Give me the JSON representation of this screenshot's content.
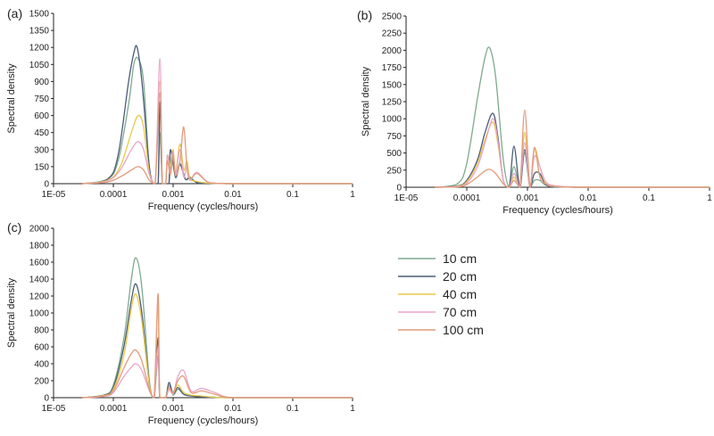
{
  "legend": {
    "placement": "right",
    "entries": [
      "10 cm",
      "20 cm",
      "40 cm",
      "70 cm",
      "100 cm"
    ],
    "colors": [
      "#7fa98f",
      "#4b5d79",
      "#e8c94a",
      "#e8a6c8",
      "#e39a7a"
    ]
  },
  "chart_data": [
    {
      "type": "line",
      "panel_label": "(a)",
      "xlabel": "Frequency (cycles/hours)",
      "ylabel": "Spectral density",
      "x_scale": "log",
      "xlim": [
        1e-05,
        1
      ],
      "x_ticks": [
        "1E-05",
        "0.0001",
        "0.001",
        "0.01",
        "0.1",
        "1"
      ],
      "ylim": [
        0,
        1500
      ],
      "y_ticks": [
        "0",
        "150",
        "300",
        "450",
        "600",
        "750",
        "900",
        "1050",
        "1200",
        "1350",
        "1500"
      ],
      "grid": false,
      "series": [
        {
          "name": "10 cm",
          "x": [
            3e-05,
            8e-05,
            0.00012,
            0.00018,
            0.00022,
            0.00026,
            0.00032,
            0.0004,
            0.00048,
            0.00056,
            0.0006,
            0.00066,
            0.00075,
            0.00085,
            0.00095,
            0.0011,
            0.0013,
            0.0016,
            0.0019,
            0.0025,
            0.004,
            0.01,
            0.1,
            1
          ],
          "y": [
            0,
            40,
            200,
            700,
            1050,
            1100,
            900,
            120,
            0,
            0,
            450,
            0,
            0,
            0,
            250,
            50,
            180,
            40,
            60,
            10,
            5,
            0,
            0,
            0
          ]
        },
        {
          "name": "20 cm",
          "x": [
            3e-05,
            8e-05,
            0.00012,
            0.00018,
            0.00022,
            0.00025,
            0.0003,
            0.0004,
            0.00048,
            0.00056,
            0.0006,
            0.00066,
            0.00075,
            0.00085,
            0.0009,
            0.0011,
            0.0013,
            0.0016,
            0.0019,
            0.0025,
            0.004,
            0.01,
            0.1,
            1
          ],
          "y": [
            0,
            40,
            250,
            900,
            1150,
            1200,
            900,
            150,
            0,
            0,
            720,
            0,
            0,
            0,
            300,
            60,
            170,
            40,
            50,
            10,
            5,
            0,
            0,
            0
          ]
        },
        {
          "name": "40 cm",
          "x": [
            3e-05,
            8e-05,
            0.00013,
            0.0002,
            0.00026,
            0.00032,
            0.0004,
            0.0005,
            0.0006,
            0.00066,
            0.00075,
            0.0008,
            0.0009,
            0.001,
            0.0011,
            0.0013,
            0.0015,
            0.0017,
            0.0019,
            0.0025,
            0.004,
            0.01,
            0.1,
            1
          ],
          "y": [
            0,
            30,
            150,
            450,
            600,
            500,
            100,
            0,
            900,
            0,
            0,
            250,
            150,
            300,
            100,
            350,
            120,
            200,
            50,
            20,
            5,
            0,
            0,
            0
          ]
        },
        {
          "name": "70 cm",
          "x": [
            3e-05,
            8e-05,
            0.00013,
            0.0002,
            0.00026,
            0.00032,
            0.0004,
            0.0005,
            0.0006,
            0.00066,
            0.00075,
            0.0008,
            0.0009,
            0.001,
            0.0011,
            0.0013,
            0.0015,
            0.0017,
            0.0019,
            0.0025,
            0.004,
            0.01,
            0.1,
            1
          ],
          "y": [
            0,
            25,
            120,
            300,
            370,
            300,
            80,
            0,
            1100,
            0,
            0,
            250,
            100,
            280,
            80,
            300,
            60,
            150,
            30,
            100,
            10,
            0,
            0,
            0
          ]
        },
        {
          "name": "100 cm",
          "x": [
            3e-05,
            8e-05,
            0.00013,
            0.0002,
            0.00026,
            0.00032,
            0.0004,
            0.0005,
            0.0006,
            0.00066,
            0.00075,
            0.0008,
            0.0009,
            0.001,
            0.0011,
            0.0013,
            0.0015,
            0.0017,
            0.0019,
            0.0025,
            0.004,
            0.01,
            0.1,
            1
          ],
          "y": [
            0,
            15,
            60,
            120,
            150,
            120,
            30,
            0,
            800,
            0,
            0,
            200,
            80,
            250,
            70,
            200,
            500,
            150,
            40,
            90,
            10,
            0,
            0,
            0
          ]
        }
      ]
    },
    {
      "type": "line",
      "panel_label": "(b)",
      "xlabel": "Frequency (cycles/hours)",
      "ylabel": "Spectral density",
      "x_scale": "log",
      "xlim": [
        1e-05,
        1
      ],
      "x_ticks": [
        "1E-05",
        "0.0001",
        "0.001",
        "0.01",
        "0.1",
        "1"
      ],
      "ylim": [
        0,
        2500
      ],
      "y_ticks": [
        "0",
        "250",
        "500",
        "750",
        "1000",
        "1250",
        "1500",
        "1750",
        "2000",
        "2250",
        "2500"
      ],
      "grid": false,
      "series": [
        {
          "name": "10 cm",
          "x": [
            3e-05,
            7e-05,
            0.0001,
            0.00015,
            0.0002,
            0.00024,
            0.0003,
            0.0004,
            0.0005,
            0.0006,
            0.00075,
            0.0009,
            0.0011,
            0.0013,
            0.0016,
            0.002,
            0.003,
            0.01,
            0.1,
            1
          ],
          "y": [
            0,
            50,
            350,
            1300,
            1900,
            2030,
            1600,
            400,
            0,
            300,
            0,
            500,
            0,
            100,
            100,
            30,
            5,
            0,
            0,
            0
          ]
        },
        {
          "name": "20 cm",
          "x": [
            3e-05,
            7e-05,
            0.0001,
            0.00015,
            0.0002,
            0.00027,
            0.00033,
            0.0004,
            0.0005,
            0.0006,
            0.00075,
            0.0009,
            0.0011,
            0.0013,
            0.0016,
            0.002,
            0.003,
            0.01,
            0.1,
            1
          ],
          "y": [
            0,
            20,
            100,
            400,
            800,
            1080,
            700,
            100,
            0,
            600,
            0,
            550,
            0,
            200,
            200,
            40,
            5,
            0,
            0,
            0
          ]
        },
        {
          "name": "40 cm",
          "x": [
            3e-05,
            7e-05,
            0.0001,
            0.00015,
            0.0002,
            0.00027,
            0.00033,
            0.0004,
            0.0005,
            0.0006,
            0.00075,
            0.0009,
            0.0011,
            0.0013,
            0.0016,
            0.002,
            0.003,
            0.01,
            0.1,
            1
          ],
          "y": [
            0,
            15,
            80,
            350,
            700,
            950,
            600,
            100,
            0,
            150,
            0,
            800,
            0,
            550,
            300,
            60,
            10,
            0,
            0,
            0
          ]
        },
        {
          "name": "70 cm",
          "x": [
            3e-05,
            7e-05,
            0.0001,
            0.00015,
            0.0002,
            0.00027,
            0.00033,
            0.0004,
            0.0005,
            0.0006,
            0.00075,
            0.0009,
            0.0011,
            0.0013,
            0.0016,
            0.002,
            0.003,
            0.01,
            0.1,
            1
          ],
          "y": [
            0,
            10,
            60,
            300,
            650,
            1000,
            650,
            100,
            0,
            200,
            0,
            650,
            0,
            450,
            300,
            80,
            20,
            0,
            0,
            0
          ]
        },
        {
          "name": "100 cm",
          "x": [
            3e-05,
            7e-05,
            0.0001,
            0.00015,
            0.0002,
            0.00024,
            0.0003,
            0.0004,
            0.0005,
            0.0006,
            0.00075,
            0.0009,
            0.0011,
            0.0013,
            0.0016,
            0.002,
            0.003,
            0.01,
            0.1,
            1
          ],
          "y": [
            0,
            5,
            40,
            150,
            240,
            260,
            200,
            50,
            0,
            100,
            0,
            1130,
            0,
            580,
            150,
            50,
            10,
            0,
            0,
            0
          ]
        }
      ]
    },
    {
      "type": "line",
      "panel_label": "(c)",
      "xlabel": "Frequency (cycles/hours)",
      "ylabel": "Spectral density",
      "x_scale": "log",
      "xlim": [
        1e-05,
        1
      ],
      "x_ticks": [
        "1E-05",
        "0.0001",
        "0.001",
        "0.01",
        "0.1",
        "1"
      ],
      "ylim": [
        0,
        2000
      ],
      "y_ticks": [
        "0",
        "200",
        "400",
        "600",
        "800",
        "1000",
        "1200",
        "1400",
        "1600",
        "1800",
        "2000"
      ],
      "grid": false,
      "series": [
        {
          "name": "10 cm",
          "x": [
            3e-05,
            7e-05,
            0.0001,
            0.00015,
            0.0002,
            0.00024,
            0.0003,
            0.0004,
            0.00048,
            0.00056,
            0.0006,
            0.00075,
            0.00085,
            0.001,
            0.0012,
            0.0015,
            0.002,
            0.003,
            0.005,
            0.01,
            0.1,
            1
          ],
          "y": [
            0,
            30,
            150,
            700,
            1400,
            1650,
            1300,
            200,
            0,
            500,
            0,
            0,
            150,
            30,
            100,
            40,
            20,
            10,
            5,
            0,
            0,
            0
          ]
        },
        {
          "name": "20 cm",
          "x": [
            3e-05,
            7e-05,
            0.0001,
            0.00015,
            0.0002,
            0.00024,
            0.0003,
            0.0004,
            0.00048,
            0.00056,
            0.0006,
            0.00075,
            0.00085,
            0.001,
            0.0012,
            0.0015,
            0.002,
            0.003,
            0.005,
            0.01,
            0.1,
            1
          ],
          "y": [
            0,
            30,
            120,
            600,
            1150,
            1340,
            1000,
            150,
            0,
            710,
            0,
            0,
            180,
            50,
            120,
            40,
            20,
            10,
            5,
            0,
            0,
            0
          ]
        },
        {
          "name": "40 cm",
          "x": [
            3e-05,
            7e-05,
            0.0001,
            0.00015,
            0.0002,
            0.00024,
            0.0003,
            0.0004,
            0.00048,
            0.00056,
            0.0006,
            0.00075,
            0.00085,
            0.001,
            0.0012,
            0.0015,
            0.002,
            0.003,
            0.005,
            0.01,
            0.1,
            1
          ],
          "y": [
            0,
            25,
            100,
            500,
            1050,
            1220,
            900,
            150,
            0,
            1130,
            0,
            0,
            100,
            50,
            150,
            60,
            30,
            20,
            5,
            0,
            0,
            0
          ]
        },
        {
          "name": "70 cm",
          "x": [
            3e-05,
            7e-05,
            0.0001,
            0.00015,
            0.0002,
            0.00024,
            0.0003,
            0.0004,
            0.00048,
            0.00056,
            0.0006,
            0.00075,
            0.00085,
            0.001,
            0.0012,
            0.0015,
            0.002,
            0.003,
            0.005,
            0.01,
            0.1,
            1
          ],
          "y": [
            0,
            15,
            60,
            250,
            360,
            400,
            320,
            80,
            0,
            600,
            0,
            0,
            100,
            50,
            250,
            320,
            80,
            110,
            60,
            0,
            0,
            0
          ]
        },
        {
          "name": "100 cm",
          "x": [
            3e-05,
            7e-05,
            0.0001,
            0.00015,
            0.0002,
            0.00024,
            0.0003,
            0.0004,
            0.00048,
            0.00056,
            0.0006,
            0.00075,
            0.00085,
            0.001,
            0.0012,
            0.0015,
            0.002,
            0.003,
            0.005,
            0.01,
            0.1,
            1
          ],
          "y": [
            0,
            20,
            80,
            350,
            520,
            560,
            430,
            100,
            0,
            1230,
            0,
            0,
            120,
            60,
            200,
            250,
            60,
            80,
            40,
            0,
            0,
            0
          ]
        }
      ]
    }
  ]
}
